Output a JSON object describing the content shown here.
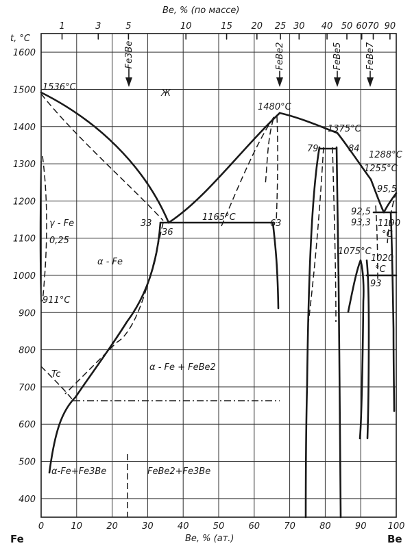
{
  "axes": {
    "top_label": "Be, % (по массе)",
    "bottom_label": "Be, % (ат.)",
    "y_label": "t, °C",
    "left_element": "Fe",
    "right_element": "Be",
    "y_ticks": [
      "1600",
      "1500",
      "1400",
      "1300",
      "1200",
      "1100",
      "1000",
      "900",
      "800",
      "700",
      "600",
      "500",
      "400"
    ],
    "x_ticks": [
      "10",
      "20",
      "30",
      "40",
      "50",
      "60",
      "70",
      "80",
      "90",
      "100"
    ],
    "x_zero": "0",
    "top_ticks": [
      "1",
      "3",
      "5",
      "10",
      "15",
      "20",
      "25",
      "30",
      "40",
      "50",
      "60",
      "70",
      "90"
    ]
  },
  "phases": {
    "fe3be": "Fe3Be",
    "febe2": "FeBe2",
    "febe5": "FeBe5",
    "febe7": "FeBe7"
  },
  "labels": {
    "t1536": "1536°C",
    "t1480": "1480°C",
    "t1375": "1375°C",
    "t1288": "1288°C",
    "t1255": "1255°C",
    "t1165": "1165°C",
    "t1190": "1190",
    "t1190_unit": "°C",
    "t1075": "1075°C",
    "t1020": "1020",
    "t1020_unit": "°C",
    "t911": "911°C",
    "zh": "Ж",
    "gamma_fe": "γ - Fe",
    "c025": "0,25",
    "alpha_fe": "α - Fe",
    "p33": "33",
    "p36": "36",
    "p63": "63",
    "p79": "79",
    "p84": "84",
    "p955": "95,5",
    "p925": "92,5",
    "p933": "93,3",
    "p93": "93",
    "tc": "Tc",
    "alpha_febe2": "α - Fe + FeBe2",
    "alpha_fe3be": "α-Fe+Fe3Be",
    "febe2_fe3be": "FeBe2+Fe3Be"
  }
}
